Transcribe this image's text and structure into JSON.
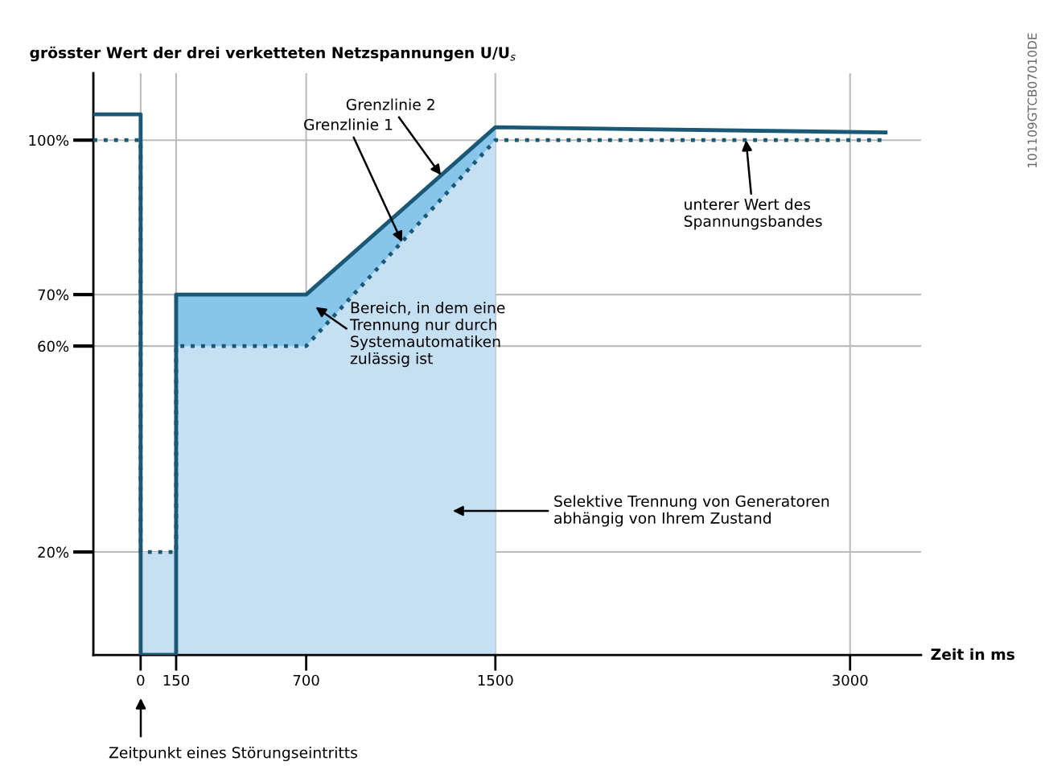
{
  "chart_data": {
    "type": "line",
    "ylabel": "grösster Wert der drei verketteten Netzspannungen U/U$_{s}$",
    "xlabel": "Zeit in ms",
    "xlim": [
      -200,
      3300
    ],
    "xticks": [
      0,
      150,
      700,
      1500,
      3000
    ],
    "ylim": [
      0,
      113
    ],
    "yticks": [
      {
        "value": 20,
        "label": "20%"
      },
      {
        "value": 60,
        "label": "60%"
      },
      {
        "value": 70,
        "label": "70%"
      },
      {
        "value": 100,
        "label": "100%"
      }
    ],
    "grid": true,
    "series": [
      {
        "type": "area",
        "color": "#88c5ea",
        "x": [
          150,
          700,
          1500
        ],
        "values": [
          70,
          70,
          102.5
        ]
      },
      {
        "type": "area",
        "color": "#c6e0f3",
        "x": [
          0,
          150,
          150,
          700,
          1500
        ],
        "values": [
          20,
          20,
          60,
          60,
          100
        ]
      },
      {
        "color": "#1a5876",
        "line_style": "dotted",
        "x": [
          -200,
          0,
          0,
          150,
          150,
          700,
          1500,
          3150
        ],
        "values": [
          100,
          100,
          20,
          20,
          60,
          60,
          100,
          100
        ]
      },
      {
        "color": "#1a5876",
        "line_style": "solid",
        "x": [
          -200,
          0,
          0,
          150,
          150,
          700,
          1500,
          3150
        ],
        "values": [
          105,
          105,
          0,
          0,
          70,
          70,
          102.5,
          101.5
        ]
      }
    ],
    "annotations": [
      {
        "text": "Grenzlinie 2",
        "x": 1270,
        "y": 93.2
      },
      {
        "text": "Grenzlinie 1",
        "x": 1105,
        "y": 80.2
      },
      "Bereich, in dem eine\nTrennung nur durch\nSystemautomatiken\nzulässig ist",
      {
        "text": "unterer Wert des\nSpannungsbandes",
        "x": 2560,
        "y": 100
      },
      "Selektive Trennung von Generatoren\nabhängig von Ihrem Zustand",
      "Zeitpunkt eines Störungseintritts",
      "101109GTCB07010DE"
    ]
  }
}
